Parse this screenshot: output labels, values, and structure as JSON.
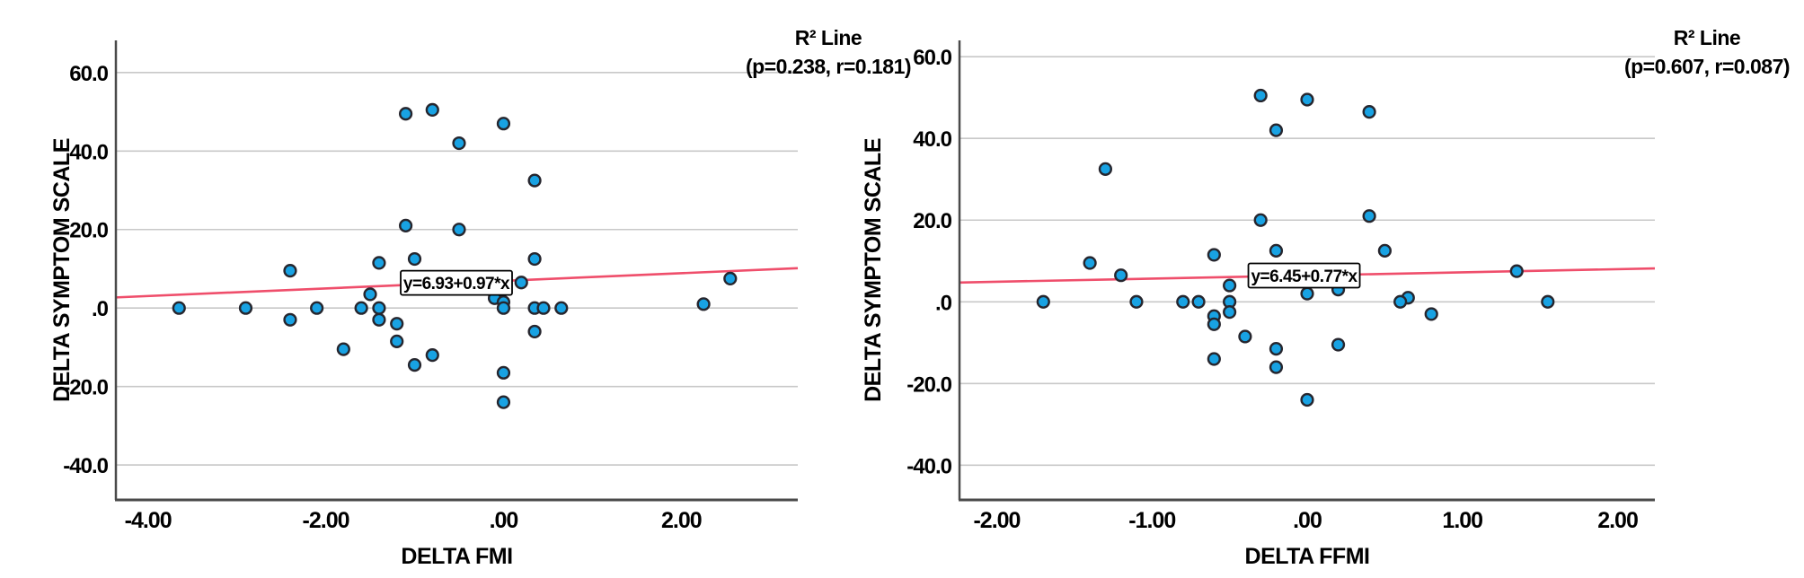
{
  "figure": {
    "description": "Two SPSS-style scatter plots with linear fit lines",
    "background": "#ffffff"
  },
  "colors": {
    "marker_fill": "#18a2e3",
    "marker_stroke": "#26262e",
    "fit_line": "#ef4e6b",
    "gridline": "#c8c8c8",
    "spine": "#4a4a4a",
    "annotation_bg": "#ffffff",
    "annotation_border": "#000000",
    "text": "#000000"
  },
  "chart_data": [
    {
      "type": "scatter",
      "xlabel": "DELTA FMI",
      "ylabel": "DELTA SYMPTOM SCALE",
      "legend_title": "R² Line",
      "legend_stats": "(p=0.238, r=0.181)",
      "annotation_label": "y=6.93+0.97*x",
      "annotation_anchor": {
        "x": -0.53,
        "y": 6.42
      },
      "fit_line": {
        "intercept": 6.93,
        "slope": 0.97
      },
      "xlim": [
        -4.36,
        3.31
      ],
      "ylim": [
        -48.9,
        68.2
      ],
      "xtick_values": [
        -4,
        -2,
        0,
        2
      ],
      "xtick_labels": [
        "-4.00",
        "-2.00",
        ".00",
        "2.00"
      ],
      "ytick_values": [
        60,
        40,
        20,
        0,
        -20,
        -40
      ],
      "ytick_labels": [
        "60.0",
        "40.0",
        "20.0",
        ".0",
        "-20.0",
        "-40.0"
      ],
      "grid": true,
      "points": [
        [
          -1.1,
          49.5
        ],
        [
          -0.8,
          50.5
        ],
        [
          0.0,
          47.0
        ],
        [
          -0.5,
          42.0
        ],
        [
          0.35,
          32.5
        ],
        [
          -1.1,
          21.0
        ],
        [
          -0.5,
          20.0
        ],
        [
          -1.4,
          11.5
        ],
        [
          -1.0,
          12.5
        ],
        [
          0.35,
          12.5
        ],
        [
          -2.4,
          9.5
        ],
        [
          2.55,
          7.5
        ],
        [
          0.2,
          6.5
        ],
        [
          -1.5,
          3.5
        ],
        [
          -0.1,
          2.5
        ],
        [
          0.0,
          1.5
        ],
        [
          -3.65,
          0.0
        ],
        [
          -2.9,
          0.0
        ],
        [
          -2.1,
          0.0
        ],
        [
          -1.6,
          0.0
        ],
        [
          -1.4,
          0.0
        ],
        [
          0.0,
          0.0
        ],
        [
          0.35,
          0.0
        ],
        [
          0.45,
          0.0
        ],
        [
          0.65,
          0.0
        ],
        [
          2.25,
          1.0
        ],
        [
          -2.4,
          -3.0
        ],
        [
          -1.4,
          -3.0
        ],
        [
          -1.2,
          -4.0
        ],
        [
          0.35,
          -6.0
        ],
        [
          -1.2,
          -8.5
        ],
        [
          -1.8,
          -10.5
        ],
        [
          -0.8,
          -12.0
        ],
        [
          -1.0,
          -14.5
        ],
        [
          0.0,
          -16.5
        ],
        [
          0.0,
          -24.0
        ]
      ]
    },
    {
      "type": "scatter",
      "xlabel": "DELTA FFMI",
      "ylabel": "DELTA SYMPTOM SCALE",
      "legend_title": "R² Line",
      "legend_stats": "(p=0.607, r=0.087)",
      "annotation_label": "y=6.45+0.77*x",
      "annotation_anchor": {
        "x": -0.02,
        "y": 6.43
      },
      "fit_line": {
        "intercept": 6.45,
        "slope": 0.77
      },
      "xlim": [
        -2.24,
        2.24
      ],
      "ylim": [
        -48.5,
        64.0
      ],
      "xtick_values": [
        -2,
        -1,
        0,
        1,
        2
      ],
      "xtick_labels": [
        "-2.00",
        "-1.00",
        ".00",
        "1.00",
        "2.00"
      ],
      "ytick_values": [
        60,
        40,
        20,
        0,
        -20,
        -40
      ],
      "ytick_labels": [
        "60.0",
        "40.0",
        "20.0",
        ".0",
        "-20.0",
        "-40.0"
      ],
      "grid": true,
      "points": [
        [
          -0.3,
          50.5
        ],
        [
          0.0,
          49.5
        ],
        [
          0.4,
          46.5
        ],
        [
          -0.2,
          42.0
        ],
        [
          -1.3,
          32.5
        ],
        [
          0.4,
          21.0
        ],
        [
          -0.3,
          20.0
        ],
        [
          -0.2,
          12.5
        ],
        [
          0.5,
          12.5
        ],
        [
          -0.6,
          11.5
        ],
        [
          -1.4,
          9.5
        ],
        [
          -1.2,
          6.5
        ],
        [
          1.35,
          7.5
        ],
        [
          -0.5,
          4.0
        ],
        [
          0.2,
          3.0
        ],
        [
          0.0,
          2.0
        ],
        [
          0.65,
          1.0
        ],
        [
          -1.7,
          0.0
        ],
        [
          -1.1,
          0.0
        ],
        [
          -0.8,
          0.0
        ],
        [
          -0.7,
          0.0
        ],
        [
          -0.5,
          0.0
        ],
        [
          0.6,
          0.0
        ],
        [
          1.55,
          0.0
        ],
        [
          -0.5,
          -2.5
        ],
        [
          -0.6,
          -3.5
        ],
        [
          -0.6,
          -5.5
        ],
        [
          0.8,
          -3.0
        ],
        [
          -0.4,
          -8.5
        ],
        [
          -0.2,
          -11.5
        ],
        [
          0.2,
          -10.5
        ],
        [
          -0.6,
          -14.0
        ],
        [
          -0.2,
          -16.0
        ],
        [
          0.0,
          -24.0
        ]
      ]
    }
  ]
}
